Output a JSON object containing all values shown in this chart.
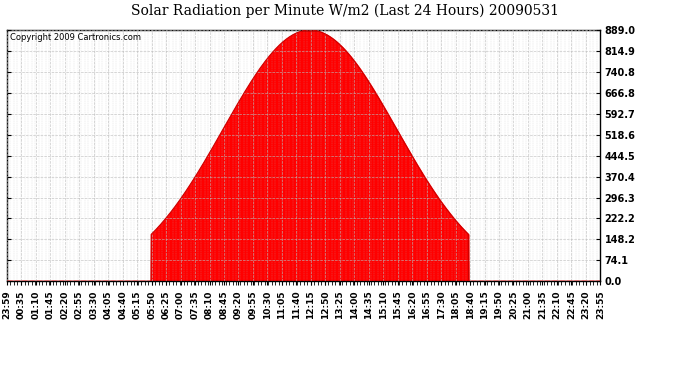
{
  "title": "Solar Radiation per Minute W/m2 (Last 24 Hours) 20090531",
  "copyright": "Copyright 2009 Cartronics.com",
  "fill_color": "#FF0000",
  "line_color": "#CC0000",
  "background_color": "#FFFFFF",
  "grid_color": "#BBBBBB",
  "dashed_line_color": "#FF0000",
  "y_ticks": [
    0.0,
    74.1,
    148.2,
    222.2,
    296.3,
    370.4,
    444.5,
    518.6,
    592.7,
    666.8,
    740.8,
    814.9,
    889.0
  ],
  "y_max": 889.0,
  "peak_hour": 12.25,
  "peak_value": 889.0,
  "rise_hour": 5.83,
  "set_hour": 18.67,
  "sigma": 3.5,
  "x_tick_labels": [
    "23:59",
    "00:35",
    "01:10",
    "01:45",
    "02:20",
    "02:55",
    "03:30",
    "04:05",
    "04:40",
    "05:15",
    "05:50",
    "06:25",
    "07:00",
    "07:35",
    "08:10",
    "08:45",
    "09:20",
    "09:55",
    "10:30",
    "11:05",
    "11:40",
    "12:15",
    "12:50",
    "13:25",
    "14:00",
    "14:35",
    "15:10",
    "15:45",
    "16:20",
    "16:55",
    "17:30",
    "18:05",
    "18:40",
    "19:15",
    "19:50",
    "20:25",
    "21:00",
    "21:35",
    "22:10",
    "22:45",
    "23:20",
    "23:55"
  ],
  "title_fontsize": 10,
  "tick_fontsize": 6.5,
  "ytick_fontsize": 7
}
